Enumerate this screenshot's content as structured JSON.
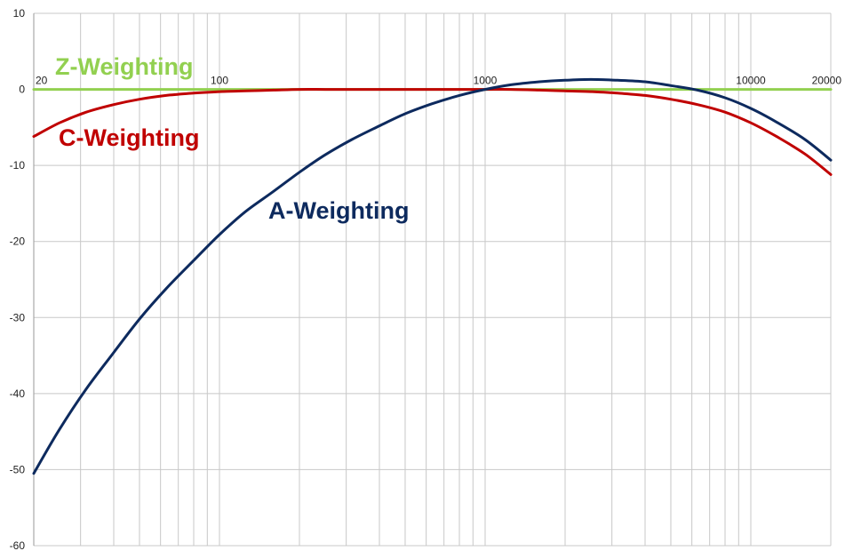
{
  "chart_data": {
    "type": "line",
    "xscale": "log",
    "xlim": [
      20,
      20000
    ],
    "ylim": [
      -60,
      10
    ],
    "grid": true,
    "legend": "none",
    "y_ticks": [
      "10",
      "0",
      "-10",
      "-20",
      "-30",
      "-40",
      "-50",
      "-60"
    ],
    "y_tick_values": [
      10,
      0,
      -10,
      -20,
      -30,
      -40,
      -50,
      -60
    ],
    "x_ticks": [
      "20",
      "100",
      "1000",
      "10000",
      "20000"
    ],
    "x_tick_values": [
      20,
      100,
      1000,
      10000,
      20000
    ],
    "series": [
      {
        "name": "Z-Weighting",
        "color": "#92d050",
        "x": [
          20,
          20000
        ],
        "y": [
          0,
          0
        ]
      },
      {
        "name": "C-Weighting",
        "color": "#c00000",
        "x": [
          20,
          25,
          31.5,
          40,
          50,
          63,
          80,
          100,
          125,
          160,
          200,
          250,
          315,
          400,
          500,
          630,
          800,
          1000,
          1250,
          1600,
          2000,
          2500,
          3150,
          4000,
          5000,
          6300,
          8000,
          10000,
          12500,
          16000,
          20000
        ],
        "y": [
          -6.2,
          -4.4,
          -3.0,
          -2.0,
          -1.3,
          -0.8,
          -0.5,
          -0.3,
          -0.2,
          -0.1,
          0,
          0,
          0,
          0,
          0,
          0,
          0,
          0,
          0,
          -0.1,
          -0.2,
          -0.3,
          -0.5,
          -0.8,
          -1.3,
          -2.0,
          -3.0,
          -4.4,
          -6.2,
          -8.5,
          -11.2
        ]
      },
      {
        "name": "A-Weighting",
        "color": "#0d2a5e",
        "x": [
          20,
          25,
          31.5,
          40,
          50,
          63,
          80,
          100,
          125,
          160,
          200,
          250,
          315,
          400,
          500,
          630,
          800,
          1000,
          1250,
          1600,
          2000,
          2500,
          3150,
          4000,
          5000,
          6300,
          8000,
          10000,
          12500,
          16000,
          20000
        ],
        "y": [
          -50.5,
          -44.7,
          -39.4,
          -34.6,
          -30.2,
          -26.2,
          -22.5,
          -19.1,
          -16.1,
          -13.4,
          -10.9,
          -8.6,
          -6.6,
          -4.8,
          -3.2,
          -1.9,
          -0.8,
          0,
          0.6,
          1.0,
          1.2,
          1.3,
          1.2,
          1.0,
          0.5,
          -0.1,
          -1.1,
          -2.5,
          -4.3,
          -6.6,
          -9.3
        ]
      }
    ]
  }
}
